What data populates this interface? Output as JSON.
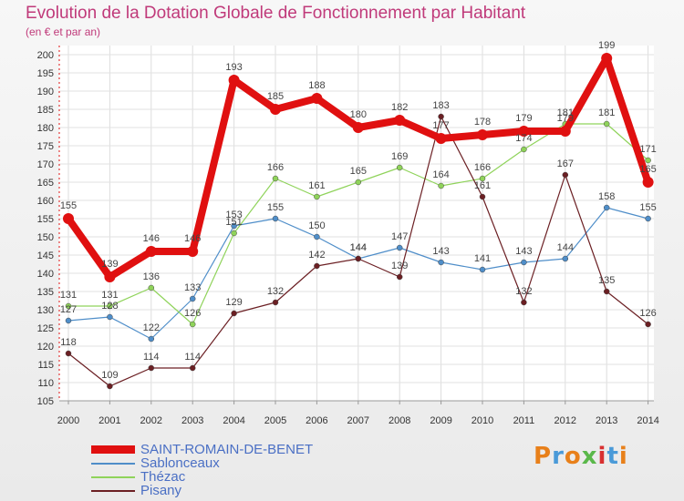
{
  "header": {
    "title": "Evolution de la Dotation Globale de Fonctionnement par Habitant",
    "subtitle": "(en € et par an)"
  },
  "brand": {
    "text": "Proxiti"
  },
  "colors": {
    "title": "#c03a7a",
    "saint_romain": "#e01010",
    "sablonceaux": "#4f8ec9",
    "thezac": "#8fd35a",
    "pisany": "#6b1f23",
    "legend_text": "#4a6fc4"
  },
  "chart_data": {
    "type": "line",
    "x": [
      "2000",
      "2001",
      "2002",
      "2003",
      "2004",
      "2005",
      "2006",
      "2007",
      "2008",
      "2009",
      "2010",
      "2011",
      "2012",
      "2013",
      "2014"
    ],
    "ylim": [
      105,
      200
    ],
    "yticks": [
      105,
      110,
      115,
      120,
      125,
      130,
      135,
      140,
      145,
      150,
      155,
      160,
      165,
      170,
      175,
      180,
      185,
      190,
      195,
      200
    ],
    "grid": true,
    "legend_position": "bottom-left",
    "series": [
      {
        "name": "SAINT-ROMAIN-DE-BENET",
        "values": [
          155,
          139,
          146,
          146,
          193,
          185,
          188,
          180,
          182,
          177,
          178,
          179,
          179,
          199,
          165
        ],
        "labels": [
          "155",
          "139",
          "146",
          "146",
          "193",
          "185",
          "188",
          "180",
          "182",
          "177",
          "178",
          "179",
          "179",
          "199",
          "165"
        ]
      },
      {
        "name": "Sablonceaux",
        "values": [
          127,
          128,
          122,
          133,
          153,
          155,
          150,
          144,
          147,
          143,
          141,
          143,
          144,
          158,
          155
        ],
        "labels": [
          "127",
          "128",
          "122",
          "133",
          "153",
          "155",
          "150",
          "144",
          "147",
          "143",
          "141",
          "143",
          "144",
          "158",
          "155"
        ]
      },
      {
        "name": "Thézac",
        "values": [
          131,
          131,
          136,
          126,
          151,
          166,
          161,
          165,
          169,
          164,
          166,
          174,
          181,
          181,
          171
        ],
        "labels": [
          "131",
          "131",
          "136",
          "126",
          "151",
          "166",
          "161",
          "165",
          "169",
          "164",
          "166",
          "174",
          "181",
          "181",
          "171"
        ]
      },
      {
        "name": "Pisany",
        "values": [
          118,
          109,
          114,
          114,
          129,
          132,
          142,
          144,
          139,
          183,
          161,
          132,
          167,
          135,
          126
        ],
        "labels": [
          "118",
          "109",
          "114",
          "114",
          "129",
          "132",
          "142",
          "144",
          "139",
          "183",
          "161",
          "132",
          "167",
          "135",
          "126"
        ]
      }
    ]
  }
}
